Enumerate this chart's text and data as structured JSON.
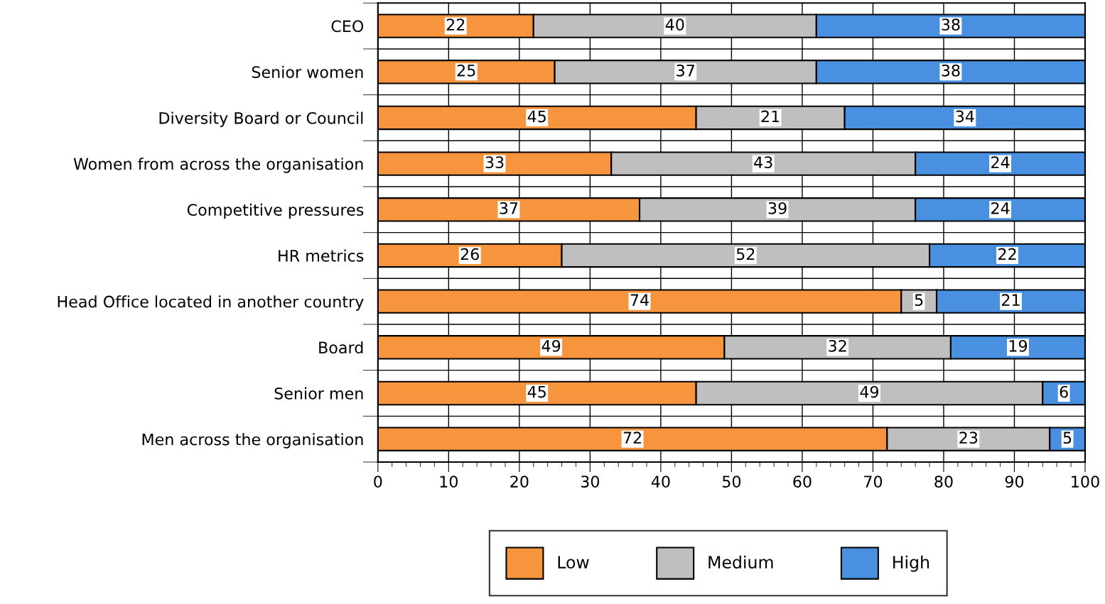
{
  "chart_data": {
    "type": "bar",
    "orientation": "horizontal",
    "stacked": true,
    "categories": [
      "CEO",
      "Senior women",
      "Diversity Board or Council",
      "Women from across the organisation",
      "Competitive pressures",
      "HR metrics",
      "Head Office located in another country",
      "Board",
      "Senior men",
      "Men across the organisation"
    ],
    "series": [
      {
        "name": "Low",
        "color": "#f7953f",
        "values": [
          22,
          25,
          45,
          33,
          37,
          26,
          74,
          49,
          45,
          72
        ]
      },
      {
        "name": "Medium",
        "color": "#bfbfbf",
        "values": [
          40,
          37,
          21,
          43,
          39,
          52,
          5,
          32,
          49,
          23
        ]
      },
      {
        "name": "High",
        "color": "#4a90e0",
        "values": [
          38,
          38,
          34,
          24,
          24,
          22,
          21,
          19,
          6,
          5
        ]
      }
    ],
    "xlim": [
      0,
      100
    ],
    "xticks": [
      0,
      10,
      20,
      30,
      40,
      50,
      60,
      70,
      80,
      90,
      100
    ],
    "grid": true,
    "legend": "bottom",
    "data_labels": true
  }
}
